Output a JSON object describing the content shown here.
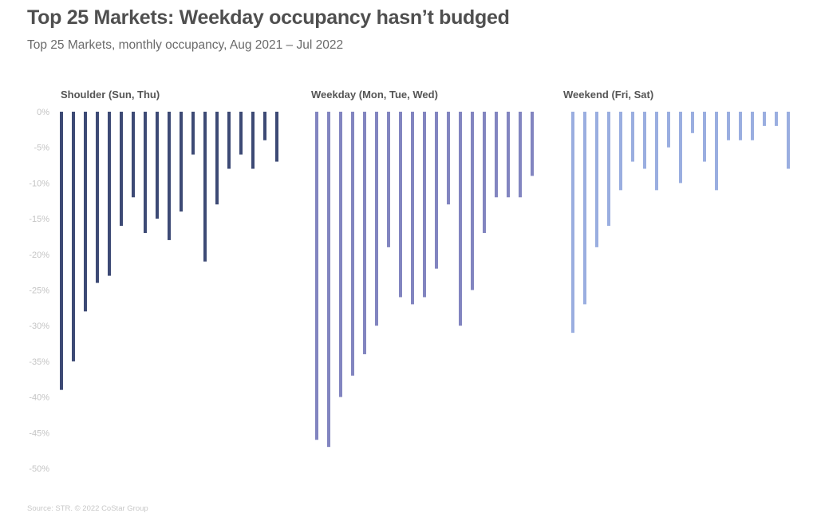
{
  "chart_data": {
    "type": "bar",
    "title": "Top 25 Markets: Weekday occupancy hasn’t budged",
    "subtitle": "Top 25 Markets, monthly occupancy, Aug 2021 – Jul 2022",
    "source": "Source: STR. © 2022 CoStar Group",
    "xlabel": "",
    "ylabel": "",
    "ylim": [
      -50,
      0
    ],
    "y_ticks": [
      0,
      -5,
      -10,
      -15,
      -20,
      -25,
      -30,
      -35,
      -40,
      -45,
      -50
    ],
    "y_tick_labels": [
      "0%",
      "-5%",
      "-10%",
      "-15%",
      "-20%",
      "-25%",
      "-30%",
      "-35%",
      "-40%",
      "-45%",
      "-50%"
    ],
    "grid": false,
    "legend": "none",
    "panels": [
      {
        "name": "Shoulder (Sun, Thu)",
        "color": "#3d4a75",
        "values": [
          -39,
          -35,
          -28,
          -24,
          -23,
          -16,
          -12,
          -17,
          -15,
          -18,
          -14,
          -6,
          -21,
          -13,
          -8,
          -6,
          -8,
          -4,
          -7
        ]
      },
      {
        "name": "Weekday (Mon, Tue, Wed)",
        "color": "#8285c0",
        "values": [
          -46,
          -47,
          -40,
          -37,
          -34,
          -30,
          -19,
          -26,
          -27,
          -26,
          -22,
          -13,
          -30,
          -25,
          -17,
          -12,
          -12,
          -12,
          -9
        ]
      },
      {
        "name": "Weekend (Fri, Sat)",
        "color": "#9aaee0",
        "values": [
          -31,
          -27,
          -19,
          -16,
          -11,
          -7,
          -8,
          -11,
          -5,
          -10,
          -3,
          -7,
          -11,
          -4,
          -4,
          -4,
          -2,
          -2,
          -8
        ]
      }
    ]
  }
}
